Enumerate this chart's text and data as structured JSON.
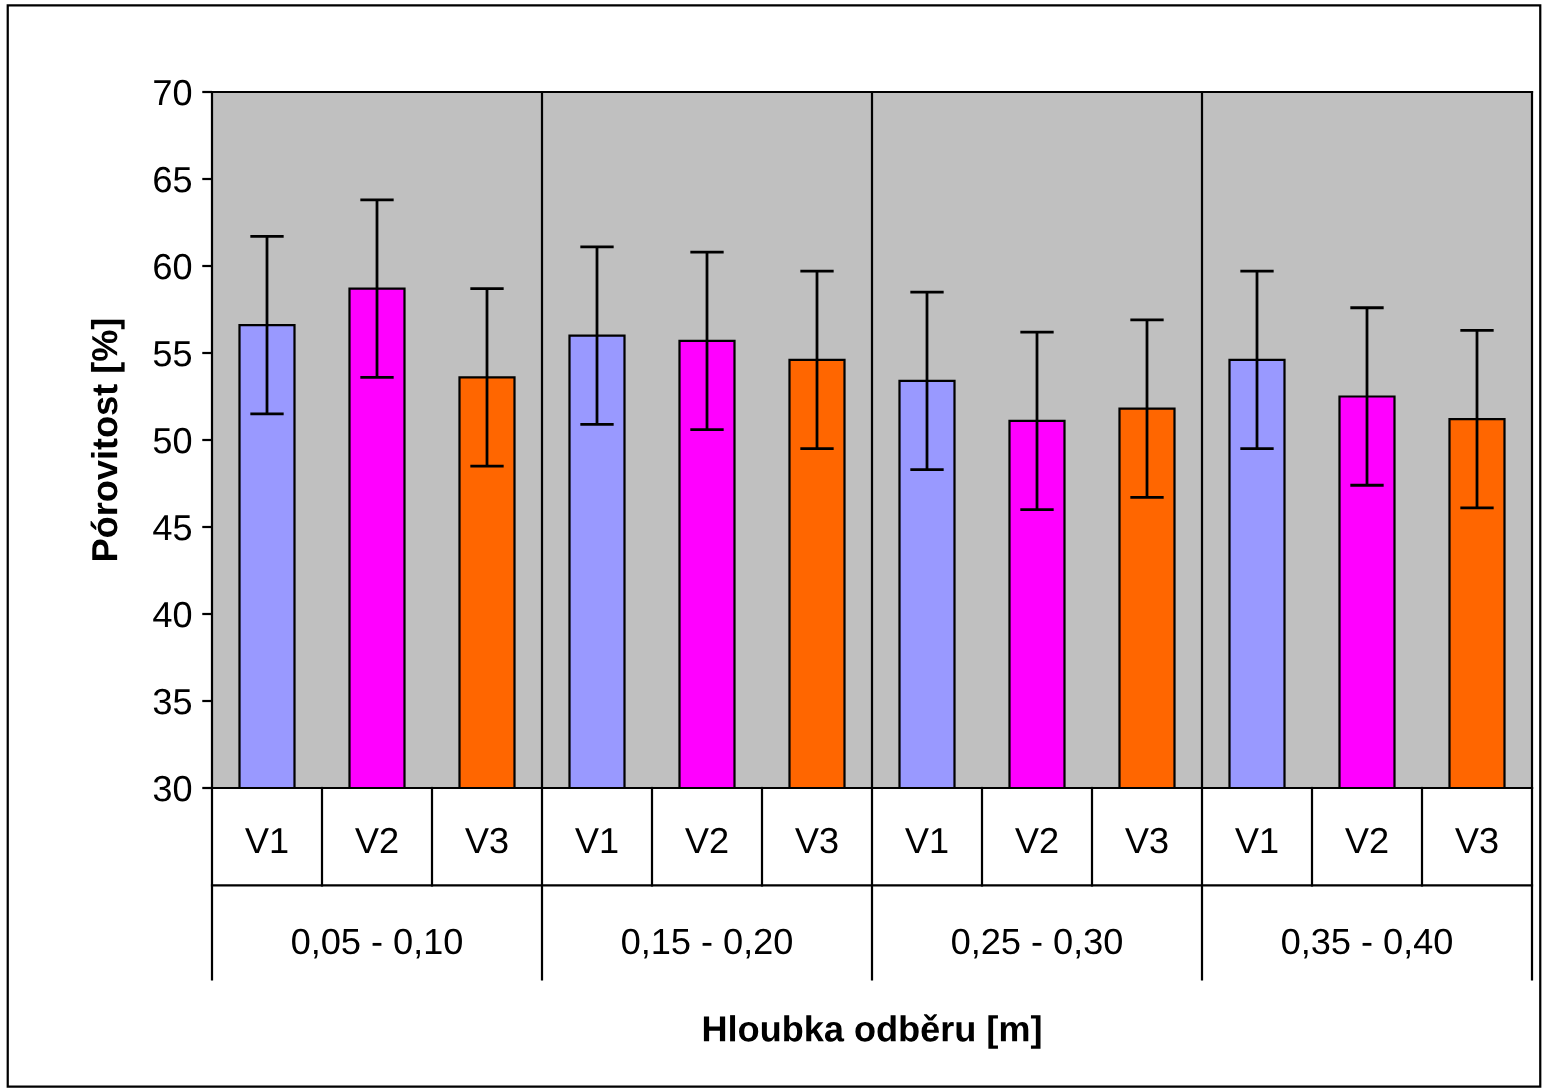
{
  "chart_data": {
    "type": "bar",
    "xlabel": "Hloubka odběru [m]",
    "ylabel": "Pórovitost [%]",
    "categories": [
      "V1",
      "V2",
      "V3",
      "V1",
      "V2",
      "V3",
      "V1",
      "V2",
      "V3",
      "V1",
      "V2",
      "V3"
    ],
    "values": [
      56.6,
      58.7,
      53.6,
      56.0,
      55.7,
      54.6,
      53.4,
      51.1,
      51.8,
      54.6,
      52.5,
      51.2
    ],
    "errors": [
      5.1,
      5.1,
      5.1,
      5.1,
      5.1,
      5.1,
      5.1,
      5.1,
      5.1,
      5.1,
      5.1,
      5.1
    ],
    "colors": [
      "#9999ff",
      "#ff00ff",
      "#ff6600",
      "#9999ff",
      "#ff00ff",
      "#ff6600",
      "#9999ff",
      "#ff00ff",
      "#ff6600",
      "#9999ff",
      "#ff00ff",
      "#ff6600"
    ],
    "annotations": [
      "0,05 - 0,10",
      "0,15 - 0,20",
      "0,25 - 0,30",
      "0,35 - 0,40"
    ],
    "ylim": [
      30,
      70
    ],
    "yticks": [
      30,
      35,
      40,
      45,
      50,
      55,
      60,
      65,
      70
    ],
    "grid": false,
    "legend": false
  }
}
